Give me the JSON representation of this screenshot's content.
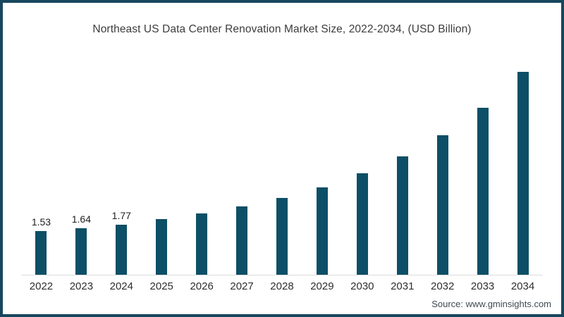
{
  "chart_data": {
    "type": "bar",
    "title": "Northeast US Data Center Renovation Market Size, 2022-2034, (USD Billion)",
    "categories": [
      "2022",
      "2023",
      "2024",
      "2025",
      "2026",
      "2027",
      "2028",
      "2029",
      "2030",
      "2031",
      "2032",
      "2033",
      "2034"
    ],
    "values": [
      1.53,
      1.64,
      1.77,
      1.97,
      2.16,
      2.41,
      2.72,
      3.09,
      3.57,
      4.17,
      4.93,
      5.9,
      7.16
    ],
    "data_labels": [
      "1.53",
      "1.64",
      "1.77",
      "",
      "",
      "",
      "",
      "",
      "",
      "",
      "",
      "",
      ""
    ],
    "xlabel": "",
    "ylabel": "USD Billion",
    "ylim": [
      0,
      7.5
    ],
    "grid": "off",
    "legend": "none",
    "bar_color": "#0d4f66",
    "axis_line_color": "#dcdcdc",
    "frame_border_color": "#17465e"
  },
  "source": {
    "label": "Source: www.gminsights.com"
  }
}
